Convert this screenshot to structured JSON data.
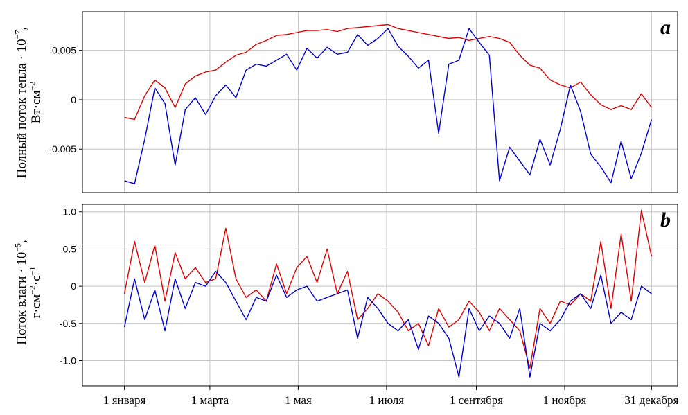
{
  "chart_data": [
    {
      "type": "line",
      "panel_label": "a",
      "ylabel_line1": "Полный поток тепла · 10",
      "ylabel_exp1": "−7",
      "ylabel_tail1": ",",
      "ylabel_line2": "Вт·см",
      "ylabel_exp2": "−2",
      "yticks": [
        {
          "value": 0.005,
          "label": "0.005"
        },
        {
          "value": 0.0,
          "label": "0"
        },
        {
          "value": -0.005,
          "label": "-0.005"
        }
      ],
      "ylim": [
        -0.0094,
        0.0089
      ],
      "grid": true,
      "legend": "none",
      "x_days": [
        1,
        8,
        15,
        22,
        29,
        36,
        43,
        50,
        57,
        64,
        71,
        78,
        85,
        92,
        99,
        106,
        113,
        120,
        127,
        134,
        141,
        148,
        155,
        162,
        169,
        176,
        183,
        190,
        197,
        204,
        211,
        218,
        225,
        232,
        239,
        246,
        253,
        260,
        267,
        274,
        281,
        288,
        295,
        302,
        309,
        316,
        323,
        330,
        337,
        344,
        351,
        358,
        365
      ],
      "series": [
        {
          "color": "#e00000",
          "values": [
            -0.0018,
            -0.002,
            0.0004,
            0.002,
            0.0012,
            -0.0008,
            0.0016,
            0.0024,
            0.0028,
            0.003,
            0.0038,
            0.0045,
            0.0048,
            0.0056,
            0.006,
            0.0065,
            0.0066,
            0.0068,
            0.007,
            0.007,
            0.0071,
            0.0069,
            0.0072,
            0.0073,
            0.0074,
            0.0075,
            0.0076,
            0.0072,
            0.007,
            0.0068,
            0.0066,
            0.0064,
            0.0062,
            0.0063,
            0.006,
            0.0062,
            0.0064,
            0.0062,
            0.0058,
            0.0045,
            0.0035,
            0.0032,
            0.002,
            0.0015,
            0.0012,
            0.0018,
            0.0005,
            -0.0005,
            -0.001,
            -0.0006,
            -0.001,
            0.0006,
            -0.0008
          ]
        },
        {
          "color": "#0000d0",
          "values": [
            -0.0082,
            -0.0085,
            -0.004,
            0.0012,
            -0.0004,
            -0.0066,
            -0.001,
            0.0002,
            -0.0015,
            0.0004,
            0.0015,
            0.0002,
            0.003,
            0.0036,
            0.0034,
            0.004,
            0.0046,
            0.003,
            0.0052,
            0.0042,
            0.0053,
            0.0046,
            0.0048,
            0.0066,
            0.0055,
            0.0062,
            0.0072,
            0.0054,
            0.0044,
            0.0032,
            0.004,
            -0.0034,
            0.0036,
            0.004,
            0.0072,
            0.0058,
            0.0045,
            -0.0082,
            -0.0048,
            -0.0062,
            -0.0076,
            -0.004,
            -0.0066,
            -0.003,
            0.0015,
            -0.0012,
            -0.0055,
            -0.0068,
            -0.0084,
            -0.0042,
            -0.008,
            -0.0054,
            -0.002
          ]
        }
      ]
    },
    {
      "type": "line",
      "panel_label": "b",
      "ylabel_line1": "Поток влаги · 10",
      "ylabel_exp1": "−5",
      "ylabel_tail1": ",",
      "ylabel_line2": "г·см",
      "ylabel_exp2": "−2",
      "ylabel_line2b": "·с",
      "ylabel_exp2b": "−1",
      "yticks": [
        {
          "value": 1.0,
          "label": "1.0"
        },
        {
          "value": 0.5,
          "label": "0.5"
        },
        {
          "value": 0.0,
          "label": "0"
        },
        {
          "value": -0.5,
          "label": "-0.5"
        },
        {
          "value": -1.0,
          "label": "-1.0"
        }
      ],
      "ylim": [
        -1.34,
        1.1
      ],
      "grid": true,
      "legend": "none",
      "x_days": [
        1,
        8,
        15,
        22,
        29,
        36,
        43,
        50,
        57,
        64,
        71,
        78,
        85,
        92,
        99,
        106,
        113,
        120,
        127,
        134,
        141,
        148,
        155,
        162,
        169,
        176,
        183,
        190,
        197,
        204,
        211,
        218,
        225,
        232,
        239,
        246,
        253,
        260,
        267,
        274,
        281,
        288,
        295,
        302,
        309,
        316,
        323,
        330,
        337,
        344,
        351,
        358,
        365
      ],
      "series": [
        {
          "color": "#e00000",
          "values": [
            -0.1,
            0.6,
            0.05,
            0.55,
            -0.2,
            0.45,
            0.1,
            0.25,
            0.05,
            0.1,
            0.78,
            0.1,
            -0.15,
            -0.05,
            -0.2,
            0.3,
            -0.1,
            0.25,
            0.4,
            0.05,
            0.5,
            -0.1,
            0.2,
            -0.45,
            -0.3,
            -0.1,
            -0.2,
            -0.35,
            -0.6,
            -0.5,
            -0.8,
            -0.3,
            -0.55,
            -0.45,
            -0.2,
            -0.35,
            -0.6,
            -0.3,
            -0.45,
            -0.6,
            -1.1,
            -0.3,
            -0.5,
            -0.2,
            -0.25,
            -0.1,
            -0.2,
            0.6,
            -0.3,
            0.7,
            -0.2,
            1.02,
            0.4
          ]
        },
        {
          "color": "#0000d0",
          "values": [
            -0.55,
            0.1,
            -0.45,
            -0.05,
            -0.6,
            0.1,
            -0.3,
            0.05,
            0.0,
            0.2,
            0.05,
            -0.2,
            -0.45,
            -0.15,
            -0.2,
            0.15,
            -0.15,
            -0.05,
            0.0,
            -0.2,
            -0.15,
            -0.1,
            -0.05,
            -0.7,
            -0.15,
            -0.3,
            -0.5,
            -0.6,
            -0.45,
            -0.85,
            -0.4,
            -0.5,
            -0.7,
            -1.22,
            -0.3,
            -0.6,
            -0.4,
            -0.5,
            -0.7,
            -0.3,
            -1.22,
            -0.5,
            -0.6,
            -0.45,
            -0.2,
            -0.1,
            -0.3,
            0.15,
            -0.5,
            -0.35,
            -0.45,
            0.0,
            -0.1
          ]
        }
      ]
    }
  ],
  "x_axis": {
    "ticks": [
      {
        "day": 1,
        "label": "1 января"
      },
      {
        "day": 60,
        "label": "1 марта"
      },
      {
        "day": 121,
        "label": "1 мая"
      },
      {
        "day": 182,
        "label": "1 июля"
      },
      {
        "day": 244,
        "label": "1 сентября"
      },
      {
        "day": 305,
        "label": "1 ноября"
      },
      {
        "day": 365,
        "label": "31 декабря"
      }
    ],
    "xlim": [
      -28,
      383
    ]
  }
}
